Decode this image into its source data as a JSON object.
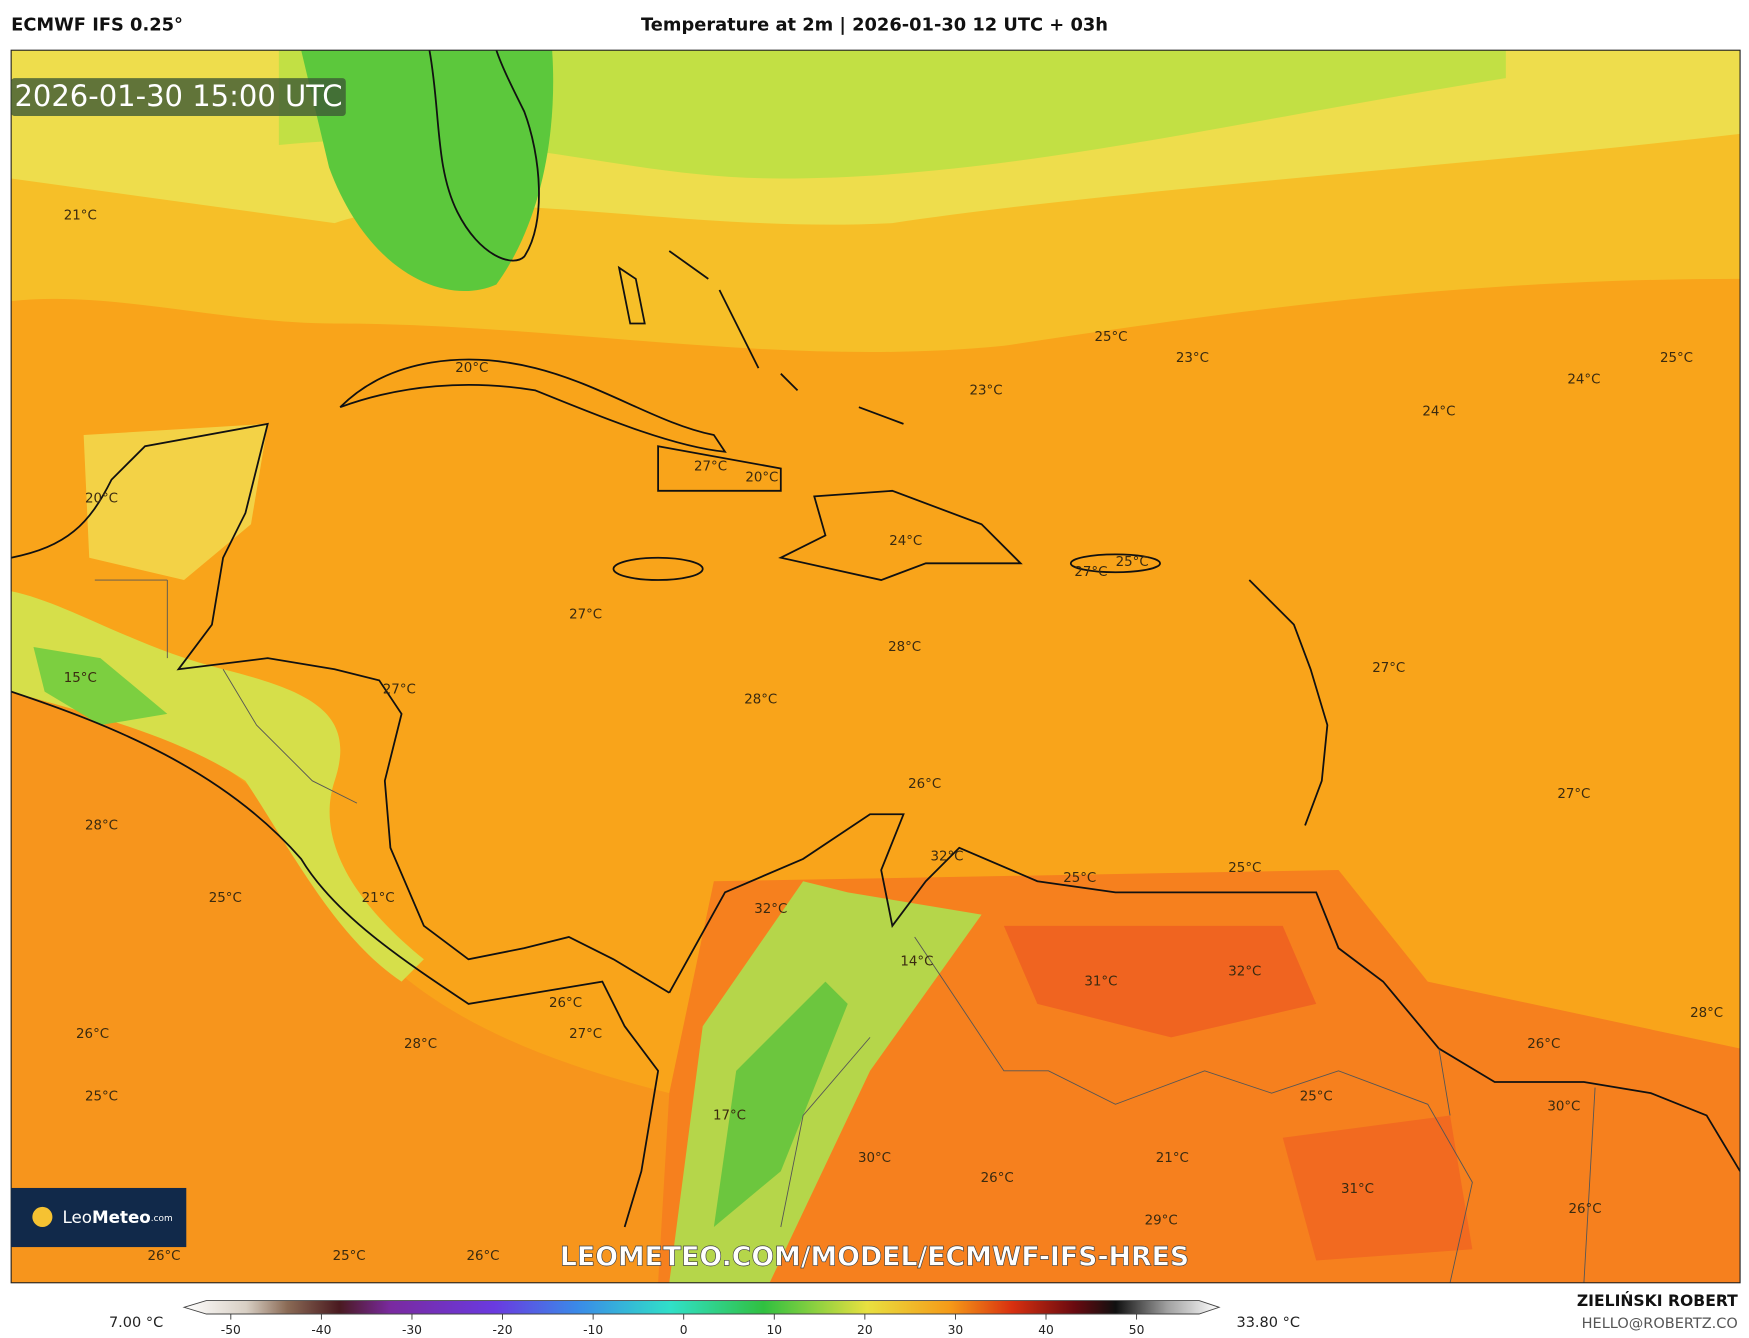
{
  "header": {
    "model": "ECMWF IFS 0.25°",
    "title": "Temperature at 2m | 2026-01-30 12 UTC + 03h"
  },
  "map": {
    "timestamp": "2026-01-30 15:00 UTC",
    "temperature_labels": [
      "21°C",
      "20°C",
      "27°C",
      "20°C",
      "20°C",
      "25°C",
      "23°C",
      "23°C",
      "24°C",
      "24°C",
      "25°C",
      "24°C",
      "25°C",
      "27°C",
      "27°C",
      "28°C",
      "27°C",
      "15°C",
      "27°C",
      "28°C",
      "26°C",
      "27°C",
      "28°C",
      "32°C",
      "25°C",
      "25°C",
      "25°C",
      "21°C",
      "32°C",
      "14°C",
      "31°C",
      "32°C",
      "26°C",
      "28°C",
      "26°C",
      "27°C",
      "28°C",
      "26°C",
      "25°C",
      "25°C",
      "30°C",
      "17°C",
      "30°C",
      "21°C",
      "26°C",
      "31°C",
      "29°C",
      "26°C",
      "26°C",
      "25°C",
      "26°C"
    ],
    "watermark": "LEOMETEO.COM/MODEL/ECMWF-IFS-HRES",
    "logo": {
      "brand": "Leo",
      "brand_bold": "Meteo",
      "suffix": ".com"
    }
  },
  "colorbar": {
    "min_label": "7.00 °C",
    "max_label": "33.80 °C",
    "range": [
      -52.7,
      56.9
    ],
    "ticks": [
      -50,
      -40,
      -30,
      -20,
      -10,
      0,
      10,
      20,
      30,
      40,
      50
    ]
  },
  "footer": {
    "author": "ZIELIŃSKI ROBERT",
    "email": "HELLO@ROBERTZ.CO"
  }
}
